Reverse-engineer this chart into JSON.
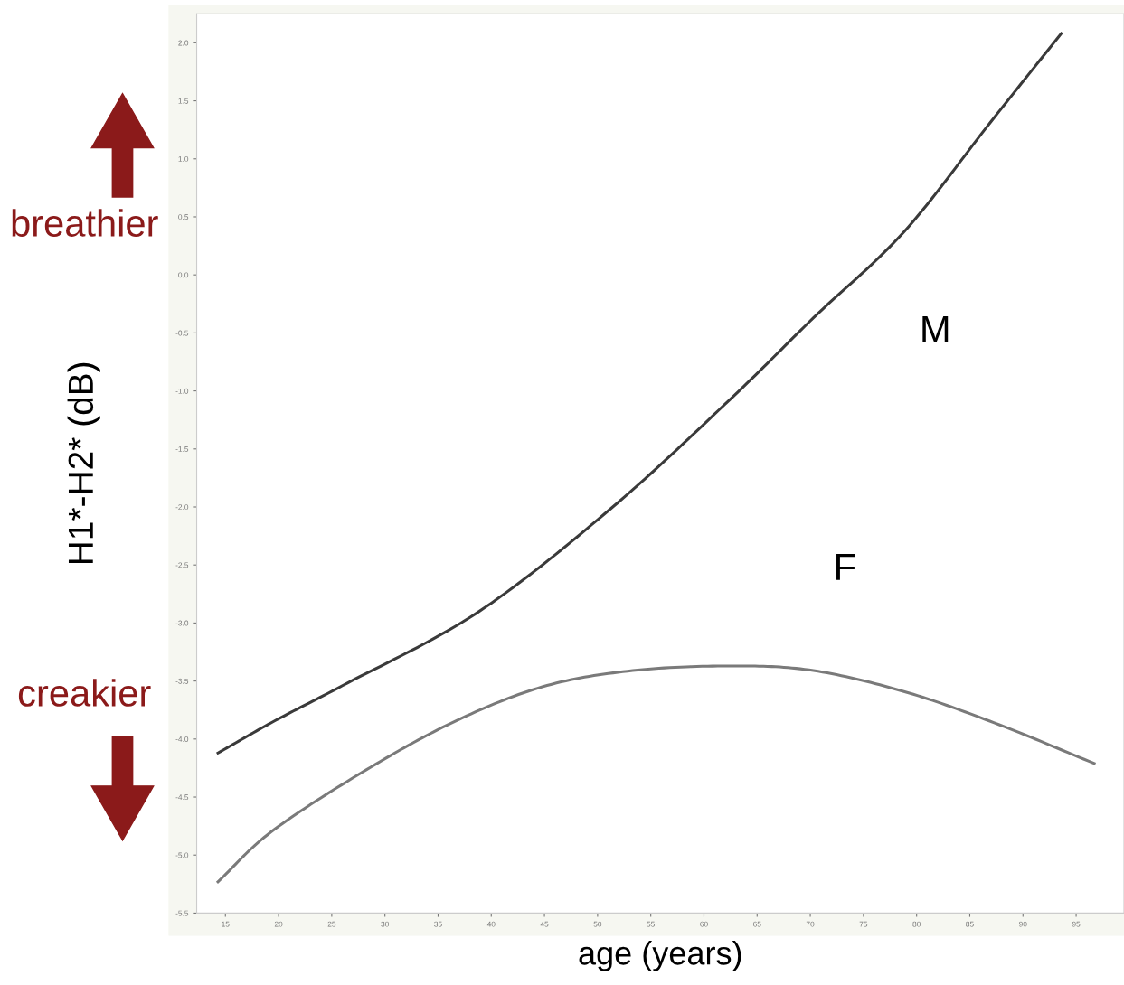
{
  "chart_data": {
    "type": "line",
    "xlabel": "age (years)",
    "ylabel": "H1*-H2* (dB)",
    "annotations": [
      "breathier",
      "creakier"
    ],
    "series": [
      {
        "name": "M",
        "color": "#3a3a3a",
        "x": [
          14.3,
          19.7,
          26.0,
          38.7,
          51.3,
          62.5,
          70.3,
          78.8,
          86.9,
          93.6
        ],
        "values": [
          -4.12,
          -3.84,
          -3.54,
          -2.91,
          -2.01,
          -1.07,
          -0.37,
          0.37,
          1.31,
          2.08
        ]
      },
      {
        "name": "F",
        "color": "#7a7a7a",
        "x": [
          14.3,
          19.3,
          27.8,
          36.3,
          44.8,
          53.3,
          62.7,
          70.3,
          78.8,
          87.3,
          96.7
        ],
        "values": [
          -5.23,
          -4.8,
          -4.29,
          -3.86,
          -3.55,
          -3.41,
          -3.37,
          -3.41,
          -3.59,
          -3.86,
          -4.21
        ]
      }
    ],
    "xlim": [
      12.3,
      99.5
    ],
    "ylim": [
      -5.5,
      2.25
    ],
    "xticks": [
      15,
      20,
      25,
      30,
      35,
      40,
      45,
      50,
      55,
      60,
      65,
      70,
      75,
      80,
      85,
      90,
      95
    ],
    "yticks": [
      -5.5,
      {
        "value": -5,
        "label": "-5.0"
      },
      -4.5,
      {
        "value": -4,
        "label": "-4.0"
      },
      -3.5,
      {
        "value": -3,
        "label": "-3.0"
      },
      -2.5,
      {
        "value": -2,
        "label": "-2.0"
      },
      -1.5,
      {
        "value": -1,
        "label": "-1.0"
      },
      -0.5,
      {
        "value": 0,
        "label": "0.0"
      },
      0.5,
      {
        "value": 1,
        "label": "1.0"
      },
      1.5,
      {
        "value": 2,
        "label": "2.0"
      }
    ],
    "grid": false,
    "legend": false,
    "marker": "none",
    "line_style": "solid"
  }
}
